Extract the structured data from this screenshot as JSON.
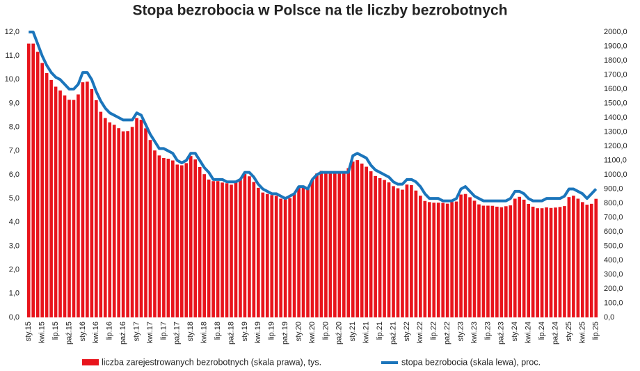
{
  "chart_data": {
    "type": "bar",
    "title": "Stopa bezrobocia w Polsce na tle liczby bezrobotnych",
    "categories": [
      "sty.15",
      null,
      null,
      "kwi.15",
      null,
      null,
      "lip.15",
      null,
      null,
      "paź.15",
      null,
      null,
      "sty.16",
      null,
      null,
      "kwi.16",
      null,
      null,
      "lip.16",
      null,
      null,
      "paź.16",
      null,
      null,
      "sty.17",
      null,
      null,
      "kwi.17",
      null,
      null,
      "lip.17",
      null,
      null,
      "paź.17",
      null,
      null,
      "sty.18",
      null,
      null,
      "kwi.18",
      null,
      null,
      "lip.18",
      null,
      null,
      "paź.18",
      null,
      null,
      "sty.19",
      null,
      null,
      "kwi.19",
      null,
      null,
      "lip.19",
      null,
      null,
      "paź.19",
      null,
      null,
      "sty.20",
      null,
      null,
      "kwi.20",
      null,
      null,
      "lip.20",
      null,
      null,
      "paź.20",
      null,
      null,
      "sty.21",
      null,
      null,
      "kwi.21",
      null,
      null,
      "lip.21",
      null,
      null,
      "paź.21",
      null,
      null,
      "sty.22",
      null,
      null,
      "kwi.22",
      null,
      null,
      "lip.22",
      null,
      null,
      "paź.22",
      null,
      null,
      "sty.23",
      null,
      null,
      "kwi.23",
      null,
      null,
      "lip.23",
      null,
      null,
      "paź.23",
      null,
      null,
      "sty.24",
      null,
      null,
      "kwi.24",
      null,
      null,
      "lip.24",
      null,
      null,
      "paź.24",
      null,
      null,
      "sty.25",
      null,
      null,
      "kwi.25",
      null,
      null,
      "lip.25"
    ],
    "series": [
      {
        "name": "liczba zarejestrowanych bezrobotnych (skala prawa), tys.",
        "type": "bar",
        "axis": "y2",
        "color": "#e8141c",
        "values": [
          1919,
          1919,
          1861,
          1783,
          1712,
          1664,
          1617,
          1590,
          1555,
          1525,
          1524,
          1563,
          1648,
          1652,
          1600,
          1522,
          1441,
          1397,
          1367,
          1350,
          1326,
          1304,
          1306,
          1335,
          1397,
          1385,
          1325,
          1243,
          1170,
          1135,
          1117,
          1112,
          1100,
          1071,
          1066,
          1081,
          1131,
          1107,
          1054,
          1004,
          966,
          955,
          955,
          945,
          940,
          930,
          950,
          968,
          1005,
          989,
          949,
          908,
          875,
          865,
          857,
          852,
          832,
          827,
          836,
          866,
          919,
          911,
          909,
          965,
          1008,
          1027,
          1025,
          1019,
          1021,
          1015,
          1019,
          1046,
          1092,
          1102,
          1078,
          1056,
          1024,
          991,
          976,
          963,
          946,
          920,
          905,
          895,
          931,
          927,
          889,
          853,
          816,
          808,
          804,
          804,
          803,
          797,
          808,
          812,
          861,
          865,
          842,
          818,
          792,
          783,
          783,
          782,
          776,
          772,
          779,
          785,
          832,
          845,
          825,
          795,
          776,
          765,
          765,
          771,
          767,
          770,
          774,
          780,
          843,
          853,
          832,
          808,
          790,
          796,
          831
        ]
      },
      {
        "name": "stopa bezrobocia (skala lewa), proc.",
        "type": "line",
        "color": "#1b75bb",
        "values": [
          12.0,
          12.0,
          11.5,
          11.0,
          10.6,
          10.3,
          10.1,
          10.0,
          9.8,
          9.6,
          9.6,
          9.8,
          10.3,
          10.3,
          10.0,
          9.5,
          9.1,
          8.8,
          8.6,
          8.5,
          8.4,
          8.3,
          8.3,
          8.3,
          8.6,
          8.5,
          8.1,
          7.7,
          7.4,
          7.1,
          7.1,
          7.0,
          6.9,
          6.6,
          6.5,
          6.6,
          6.9,
          6.9,
          6.6,
          6.3,
          6.1,
          5.8,
          5.8,
          5.8,
          5.7,
          5.7,
          5.7,
          5.8,
          6.1,
          6.1,
          5.9,
          5.6,
          5.4,
          5.3,
          5.2,
          5.2,
          5.1,
          5.0,
          5.1,
          5.2,
          5.5,
          5.5,
          5.4,
          5.8,
          6.0,
          6.1,
          6.1,
          6.1,
          6.1,
          6.1,
          6.1,
          6.1,
          6.8,
          6.9,
          6.8,
          6.7,
          6.4,
          6.2,
          6.1,
          6.0,
          5.9,
          5.7,
          5.6,
          5.6,
          5.8,
          5.8,
          5.7,
          5.5,
          5.2,
          5.0,
          5.0,
          5.0,
          4.9,
          4.9,
          4.9,
          5.0,
          5.4,
          5.5,
          5.3,
          5.1,
          5.0,
          4.9,
          4.9,
          4.9,
          4.9,
          4.9,
          4.9,
          5.0,
          5.3,
          5.3,
          5.2,
          5.0,
          4.9,
          4.9,
          4.9,
          5.0,
          5.0,
          5.0,
          5.0,
          5.1,
          5.4,
          5.4,
          5.3,
          5.2,
          5.0,
          5.2,
          5.4
        ]
      }
    ],
    "ylim": [
      0,
      12
    ],
    "yticks": [
      {
        "value": 0,
        "label": "0,0"
      },
      {
        "value": 1,
        "label": "1,0"
      },
      {
        "value": 2,
        "label": "2,0"
      },
      {
        "value": 3,
        "label": "3,0"
      },
      {
        "value": 4,
        "label": "4,0"
      },
      {
        "value": 5,
        "label": "5,0"
      },
      {
        "value": 6,
        "label": "6,0"
      },
      {
        "value": 7,
        "label": "7,0"
      },
      {
        "value": 8,
        "label": "8,0"
      },
      {
        "value": 9,
        "label": "9,0"
      },
      {
        "value": 10,
        "label": "10,0"
      },
      {
        "value": 11,
        "label": "11,0"
      },
      {
        "value": 12,
        "label": "12,0"
      }
    ],
    "y2lim": [
      0,
      2000
    ],
    "y2ticks": [
      {
        "value": 0,
        "label": "0,0"
      },
      {
        "value": 100,
        "label": "100,0"
      },
      {
        "value": 200,
        "label": "200,0"
      },
      {
        "value": 300,
        "label": "300,0"
      },
      {
        "value": 400,
        "label": "400,0"
      },
      {
        "value": 500,
        "label": "500,0"
      },
      {
        "value": 600,
        "label": "600,0"
      },
      {
        "value": 700,
        "label": "700,0"
      },
      {
        "value": 800,
        "label": "800,0"
      },
      {
        "value": 900,
        "label": "900,0"
      },
      {
        "value": 1000,
        "label": "1000,0"
      },
      {
        "value": 1100,
        "label": "1100,0"
      },
      {
        "value": 1200,
        "label": "1200,0"
      },
      {
        "value": 1300,
        "label": "1300,0"
      },
      {
        "value": 1400,
        "label": "1400,0"
      },
      {
        "value": 1500,
        "label": "1500,0"
      },
      {
        "value": 1600,
        "label": "1600,0"
      },
      {
        "value": 1700,
        "label": "1700,0"
      },
      {
        "value": 1800,
        "label": "1800,0"
      },
      {
        "value": 1900,
        "label": "1900,0"
      },
      {
        "value": 2000,
        "label": "2000,0"
      }
    ],
    "grid": false,
    "legend": "bottom"
  }
}
